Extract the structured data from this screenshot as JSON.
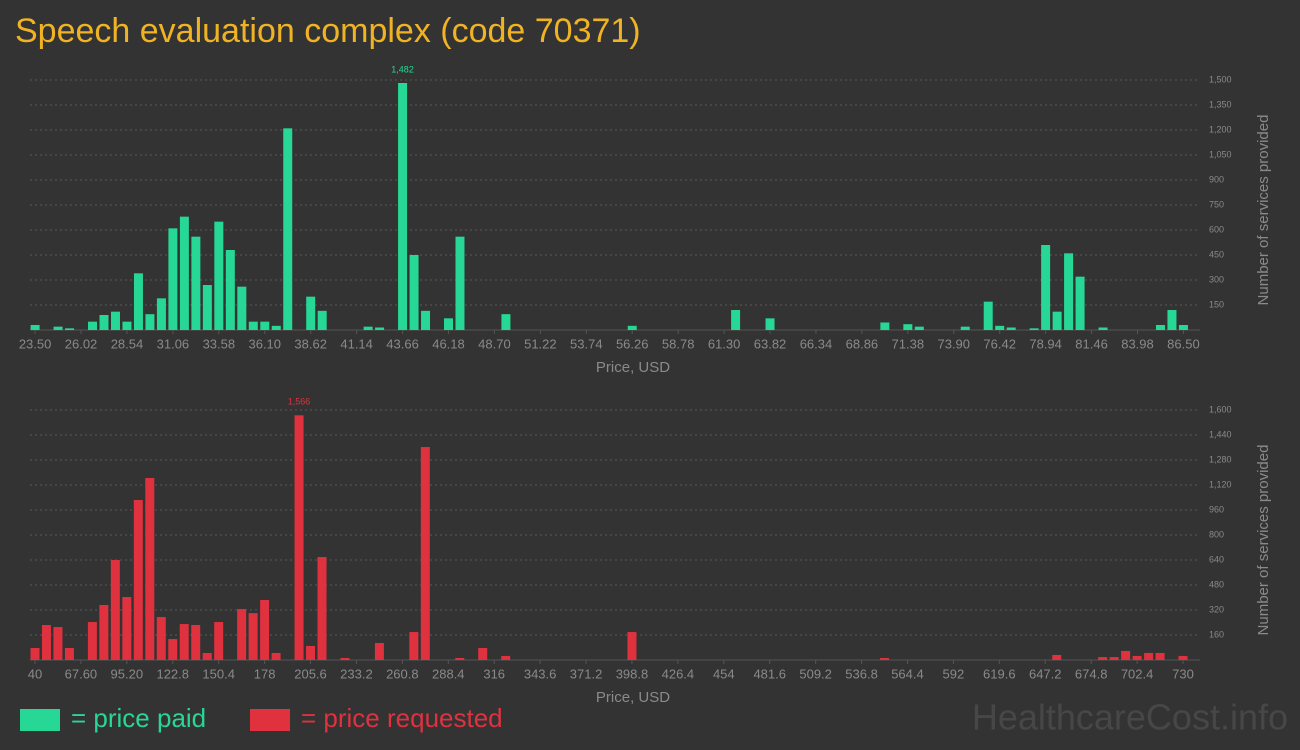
{
  "title": "Speech evaluation complex (code 70371)",
  "watermark": "HealthcareCost.info",
  "chart_data": [
    {
      "type": "bar",
      "xlabel": "Price, USD",
      "ylabel": "Number of services provided",
      "grid": true,
      "xlim": [
        23.22,
        86.97
      ],
      "ylim": [
        0,
        1500
      ],
      "xticks": [
        {
          "value": 23.5,
          "label": "23.50"
        },
        26.02,
        28.54,
        31.06,
        33.58,
        {
          "value": 36.1,
          "label": "36.10"
        },
        38.62,
        41.14,
        43.66,
        46.18,
        {
          "value": 48.7,
          "label": "48.70"
        },
        51.22,
        53.74,
        56.26,
        58.78,
        {
          "value": 61.3,
          "label": "61.30"
        },
        63.82,
        66.34,
        68.86,
        71.38,
        {
          "value": 73.9,
          "label": "73.90"
        },
        76.42,
        78.94,
        81.46,
        83.98,
        {
          "value": 86.5,
          "label": "86.50"
        }
      ],
      "yticks": [
        150,
        300,
        450,
        600,
        750,
        900,
        {
          "value": 1050,
          "label": "1,050"
        },
        {
          "value": 1200,
          "label": "1,200"
        },
        {
          "value": 1350,
          "label": "1,350"
        },
        {
          "value": 1500,
          "label": "1,500"
        }
      ],
      "x": [
        23.5,
        24.76,
        25.39,
        26.65,
        27.28,
        27.91,
        28.54,
        29.17,
        29.8,
        30.43,
        31.06,
        31.69,
        32.32,
        32.95,
        33.58,
        34.21,
        34.84,
        35.47,
        36.1,
        36.73,
        37.36,
        38.62,
        39.25,
        41.77,
        42.4,
        43.66,
        44.29,
        44.92,
        46.18,
        46.81,
        49.33,
        56.26,
        61.93,
        63.82,
        70.12,
        71.38,
        72.01,
        74.53,
        75.79,
        76.42,
        77.05,
        78.31,
        78.94,
        79.57,
        80.2,
        80.83,
        82.09,
        85.24,
        85.87,
        86.5
      ],
      "series": [
        {
          "name": "= price paid",
          "color": "#27d796",
          "values": [
            30,
            20,
            10,
            50,
            90,
            110,
            50,
            340,
            95,
            190,
            610,
            680,
            560,
            270,
            650,
            480,
            260,
            50,
            50,
            25,
            1210,
            200,
            115,
            20,
            15,
            1482,
            450,
            115,
            70,
            560,
            95,
            25,
            120,
            70,
            45,
            35,
            20,
            20,
            170,
            25,
            15,
            10,
            510,
            110,
            460,
            320,
            15,
            30,
            120,
            30
          ],
          "value_labels": [
            null,
            null,
            null,
            null,
            null,
            null,
            null,
            null,
            null,
            null,
            null,
            null,
            null,
            null,
            null,
            null,
            null,
            null,
            null,
            null,
            null,
            null,
            null,
            null,
            null,
            "1,482",
            null,
            null,
            null,
            null,
            null,
            null,
            null,
            null,
            null,
            null,
            null,
            null,
            null,
            null,
            null,
            null,
            null,
            null,
            null,
            null,
            null,
            null,
            null,
            null
          ]
        }
      ]
    },
    {
      "type": "bar",
      "xlabel": "Price, USD",
      "ylabel": "Number of services provided",
      "grid": true,
      "xlim": [
        37,
        735.4
      ],
      "ylim": [
        0,
        1600
      ],
      "xticks": [
        40,
        {
          "value": 67.6,
          "label": "67.60"
        },
        {
          "value": 95.2,
          "label": "95.20"
        },
        122.8,
        150.4,
        178,
        205.6,
        233.2,
        260.8,
        288.4,
        316,
        343.6,
        371.2,
        398.8,
        426.4,
        454,
        481.6,
        509.2,
        536.8,
        564.4,
        592,
        619.6,
        647.2,
        674.8,
        702.4,
        730
      ],
      "yticks": [
        160,
        320,
        480,
        640,
        800,
        960,
        {
          "value": 1120,
          "label": "1,120"
        },
        {
          "value": 1280,
          "label": "1,280"
        },
        {
          "value": 1440,
          "label": "1,440"
        },
        {
          "value": 1600,
          "label": "1,600"
        }
      ],
      "x": [
        40,
        46.9,
        53.8,
        60.7,
        74.5,
        81.4,
        88.3,
        95.2,
        102.1,
        109,
        115.9,
        122.8,
        129.7,
        136.6,
        143.5,
        150.4,
        164.2,
        171.1,
        178,
        184.9,
        198.7,
        205.6,
        212.5,
        226.3,
        247,
        267.7,
        274.6,
        295.3,
        309.1,
        322.9,
        398.8,
        550.6,
        654.1,
        681.7,
        688.6,
        695.5,
        702.4,
        709.3,
        716.2,
        730
      ],
      "series": [
        {
          "name": "= price requested",
          "color": "#e0313f",
          "values": [
            77,
            224,
            211,
            77,
            243,
            352,
            640,
            403,
            1024,
            1165,
            275,
            134,
            230,
            224,
            45,
            243,
            326,
            300,
            384,
            45,
            1566,
            90,
            659,
            13,
            109,
            179,
            1363,
            13,
            77,
            26,
            179,
            13,
            32,
            19,
            19,
            58,
            26,
            45,
            45,
            26
          ],
          "value_labels": [
            null,
            null,
            null,
            null,
            null,
            null,
            null,
            null,
            null,
            null,
            null,
            null,
            null,
            null,
            null,
            null,
            null,
            null,
            null,
            null,
            "1,566",
            null,
            null,
            null,
            null,
            null,
            null,
            null,
            null,
            null,
            null,
            null,
            null,
            null,
            null,
            null,
            null,
            null,
            null,
            null
          ]
        }
      ]
    }
  ]
}
